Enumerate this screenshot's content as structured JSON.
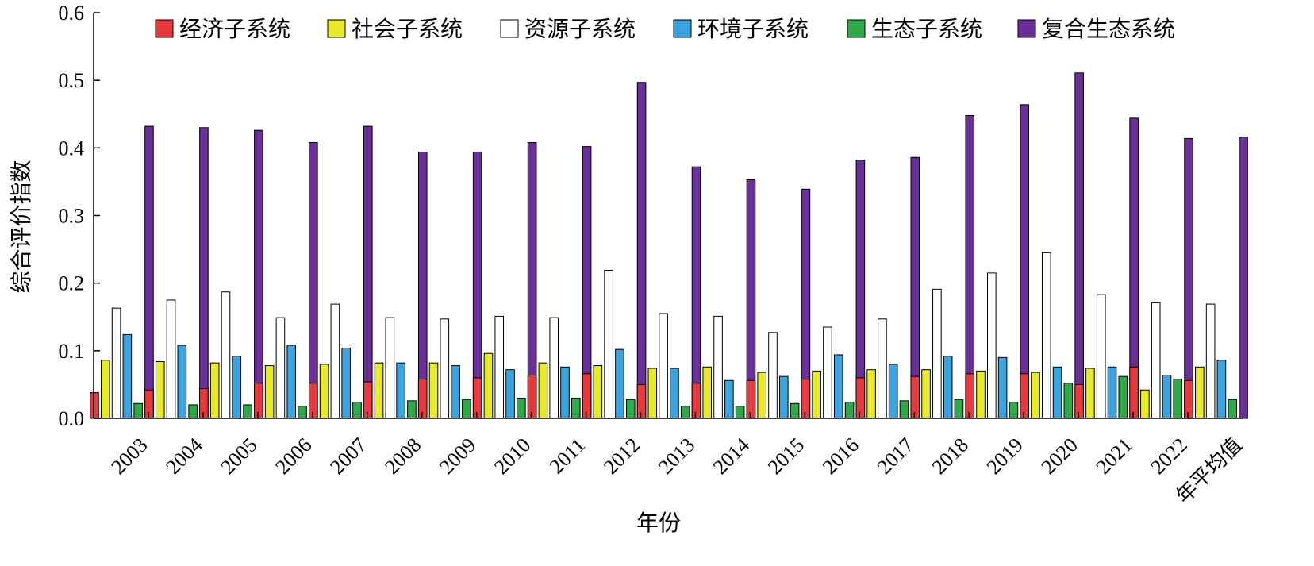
{
  "chart_data": {
    "type": "bar",
    "xlabel": "年份",
    "ylabel": "综合评价指数",
    "ylim": [
      0,
      0.6
    ],
    "yticks": [
      "0.0",
      "0.1",
      "0.2",
      "0.3",
      "0.4",
      "0.5",
      "0.6"
    ],
    "grid": false,
    "legend_position": "top",
    "categories": [
      "2003",
      "2004",
      "2005",
      "2006",
      "2007",
      "2008",
      "2009",
      "2010",
      "2011",
      "2012",
      "2013",
      "2014",
      "2015",
      "2016",
      "2017",
      "2018",
      "2019",
      "2020",
      "2021",
      "2022",
      "年平均值"
    ],
    "series": [
      {
        "name": "经济子系统",
        "color": "#e8393f",
        "values": [
          0.038,
          0.042,
          0.044,
          0.052,
          0.052,
          0.054,
          0.058,
          0.06,
          0.064,
          0.066,
          0.05,
          0.052,
          0.056,
          0.058,
          0.06,
          0.062,
          0.066,
          0.066,
          0.05,
          0.076,
          0.056
        ]
      },
      {
        "name": "社会子系统",
        "color": "#e8ea2a",
        "values": [
          0.086,
          0.084,
          0.082,
          0.078,
          0.08,
          0.082,
          0.082,
          0.096,
          0.082,
          0.078,
          0.074,
          0.076,
          0.068,
          0.07,
          0.072,
          0.072,
          0.07,
          0.068,
          0.074,
          0.042,
          0.076
        ]
      },
      {
        "name": "资源子系统",
        "color": "#ffffff",
        "values": [
          0.163,
          0.175,
          0.187,
          0.149,
          0.169,
          0.149,
          0.147,
          0.151,
          0.149,
          0.219,
          0.155,
          0.151,
          0.127,
          0.135,
          0.147,
          0.191,
          0.215,
          0.245,
          0.183,
          0.171,
          0.169
        ]
      },
      {
        "name": "环境子系统",
        "color": "#3ba3dd",
        "values": [
          0.124,
          0.108,
          0.092,
          0.108,
          0.104,
          0.082,
          0.078,
          0.072,
          0.076,
          0.102,
          0.074,
          0.056,
          0.062,
          0.094,
          0.08,
          0.092,
          0.09,
          0.076,
          0.076,
          0.064,
          0.086
        ]
      },
      {
        "name": "生态子系统",
        "color": "#2eaa4a",
        "values": [
          0.022,
          0.02,
          0.02,
          0.018,
          0.024,
          0.026,
          0.028,
          0.03,
          0.03,
          0.028,
          0.018,
          0.018,
          0.022,
          0.024,
          0.026,
          0.028,
          0.024,
          0.052,
          0.062,
          0.058,
          0.028
        ]
      },
      {
        "name": "复合生态系统",
        "color": "#6a2f98",
        "values": [
          0.432,
          0.43,
          0.426,
          0.408,
          0.432,
          0.394,
          0.394,
          0.408,
          0.402,
          0.497,
          0.372,
          0.353,
          0.339,
          0.382,
          0.386,
          0.448,
          0.464,
          0.511,
          0.444,
          0.414,
          0.416
        ]
      }
    ]
  }
}
